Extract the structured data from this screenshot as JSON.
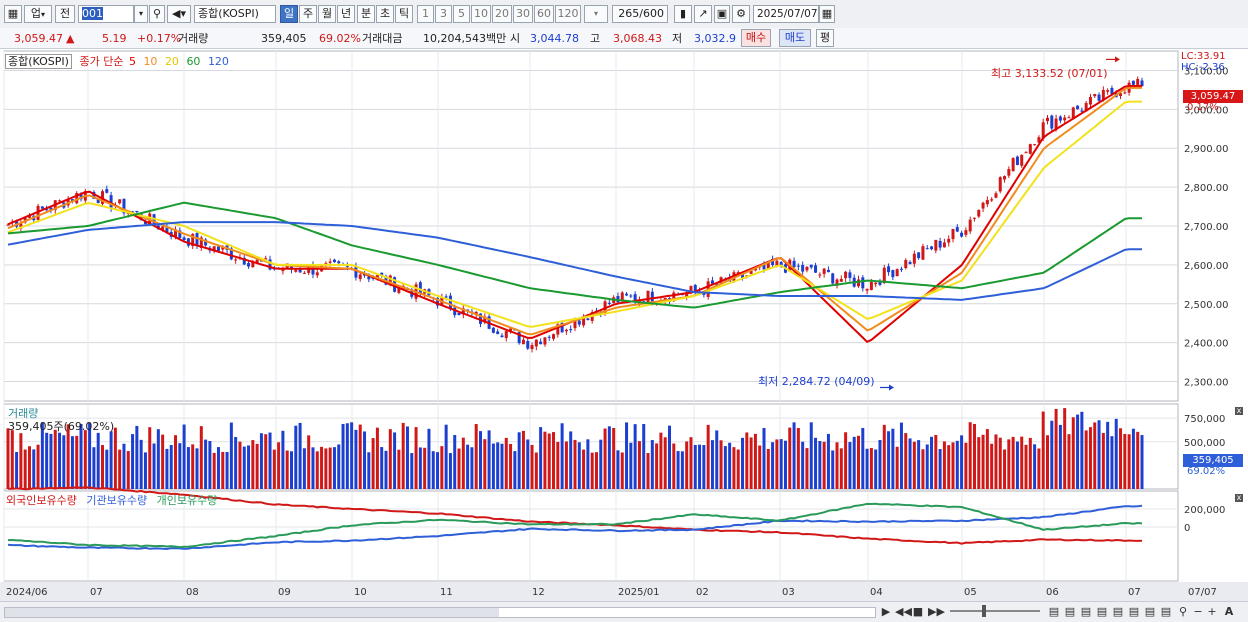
{
  "toolbar": {
    "type_label": "업",
    "prev_label": "전",
    "code_value": "001",
    "name_value": "종합(KOSPI)",
    "periods": [
      "일",
      "주",
      "월",
      "년",
      "분",
      "초",
      "틱"
    ],
    "selected_period": "일",
    "intervals": [
      "1",
      "3",
      "5",
      "10",
      "20",
      "30",
      "60",
      "120"
    ],
    "count_value": "265",
    "count_total": "/600",
    "date_value": "2025/07/07"
  },
  "info": {
    "price": "3,059.47",
    "change_arrow": "▲",
    "change": "5.19",
    "change_pct": "+0.17%",
    "volume_label": "거래량",
    "volume": "359,405",
    "volume_pct": "69.02%",
    "amount_label": "거래대금",
    "amount": "10,204,543백만",
    "open_label": "시",
    "open": "3,044.78",
    "high_label": "고",
    "high": "3,068.43",
    "low_label": "저",
    "low": "3,032.9",
    "buy_label": "매수",
    "sell_label": "매도",
    "avg_label": "평"
  },
  "price_pane": {
    "legend_name": "종합(KOSPI)",
    "legend_ma_label": "종가 단순",
    "ma_periods": [
      "5",
      "10",
      "20",
      "60",
      "120"
    ],
    "ma_colors": [
      "#e00000",
      "#f08c1e",
      "#f2e21c",
      "#1a9a30",
      "#2f5fd8"
    ],
    "hc_high": "LC:33.91",
    "hc_low": "HC:-2.36",
    "current_price_tag": "3,059.47",
    "current_pct_tag": "0.17%",
    "high_annotation": "최고 3,133.52 (07/01)",
    "low_annotation": "최저 2,284.72 (04/09)",
    "y_ticks": [
      "3,100.00",
      "3,000.00",
      "2,900.00",
      "2,800.00",
      "2,700.00",
      "2,600.00",
      "2,500.00",
      "2,400.00",
      "2,300.00"
    ]
  },
  "volume_pane": {
    "title": "거래량",
    "value_text": "359,405주(69.02%)",
    "y_ticks": [
      "750,000",
      "500,000"
    ],
    "tag_value": "359,405",
    "tag_pct": "69.02%"
  },
  "holding_pane": {
    "series_labels": [
      "외국인보유수량",
      "기관보유수량",
      "개인보유수량"
    ],
    "series_colors": [
      "#d01818",
      "#2f5fd8",
      "#2a9a5a"
    ],
    "y_ticks": [
      "200,000",
      "0"
    ]
  },
  "x_axis": {
    "labels": [
      "2024/06",
      "07",
      "08",
      "09",
      "10",
      "11",
      "12",
      "2025/01",
      "02",
      "03",
      "04",
      "05",
      "06",
      "07"
    ],
    "right_label": "07/07"
  },
  "colors": {
    "up": "#d01818",
    "down": "#1d3fd0",
    "accent": "#3f74c4"
  },
  "chart_data": {
    "type": "line",
    "title": "종합(KOSPI)",
    "ylim": [
      2250,
      3150
    ],
    "x_months": [
      "2024/06",
      "07",
      "08",
      "09",
      "10",
      "11",
      "12",
      "2025/01",
      "02",
      "03",
      "04",
      "05",
      "06",
      "07"
    ],
    "approx_close_by_month": [
      2700,
      2790,
      2670,
      2590,
      2590,
      2510,
      2400,
      2510,
      2530,
      2600,
      2550,
      2690,
      2960,
      3059.47
    ],
    "high": 3133.52,
    "low": 2284.72,
    "last_close": 3059.47,
    "series": [
      {
        "name": "5",
        "values": [
          2700,
          2790,
          2660,
          2590,
          2590,
          2500,
          2410,
          2500,
          2530,
          2620,
          2400,
          2600,
          2930,
          3060
        ]
      },
      {
        "name": "10",
        "values": [
          2690,
          2780,
          2680,
          2600,
          2590,
          2510,
          2420,
          2490,
          2520,
          2620,
          2430,
          2580,
          2900,
          3055
        ]
      },
      {
        "name": "20",
        "values": [
          2680,
          2760,
          2700,
          2600,
          2600,
          2520,
          2440,
          2480,
          2520,
          2600,
          2460,
          2560,
          2850,
          3020
        ]
      },
      {
        "name": "60",
        "values": [
          2680,
          2700,
          2760,
          2720,
          2650,
          2600,
          2540,
          2510,
          2490,
          2530,
          2560,
          2540,
          2580,
          2720
        ]
      },
      {
        "name": "120",
        "values": [
          2650,
          2690,
          2710,
          2710,
          2700,
          2670,
          2620,
          2570,
          2530,
          2520,
          2520,
          2510,
          2540,
          2640
        ]
      }
    ]
  }
}
